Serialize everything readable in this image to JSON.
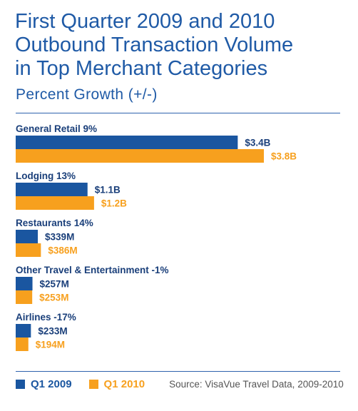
{
  "title_lines": [
    "First Quarter 2009 and 2010",
    "Outbound Transaction Volume",
    "in Top Merchant Categories"
  ],
  "subtitle": "Percent Growth (+/-)",
  "colors": {
    "title": "#1f5aa6",
    "q1_2009": "#1a56a0",
    "q1_2010": "#f7a01e",
    "rule": "#2f62ad"
  },
  "legend": {
    "items": [
      {
        "label": "Q1 2009",
        "color": "#1a56a0"
      },
      {
        "label": "Q1 2010",
        "color": "#f7a01e"
      }
    ],
    "source": "Source: VisaVue Travel Data, 2009-2010"
  },
  "chart_data": {
    "type": "bar",
    "orientation": "horizontal",
    "unit": "USD billions",
    "categories": [
      "General Retail 9%",
      "Lodging  13%",
      "Restaurants  14%",
      "Other Travel & Entertainment  -1%",
      "Airlines  -17%"
    ],
    "series": [
      {
        "name": "Q1 2009",
        "values": [
          3.4,
          1.1,
          0.339,
          0.257,
          0.233
        ],
        "labels": [
          "$3.4B",
          "$1.1B",
          "$339M",
          "$257M",
          "$233M"
        ]
      },
      {
        "name": "Q1 2010",
        "values": [
          3.8,
          1.2,
          0.386,
          0.253,
          0.194
        ],
        "labels": [
          "$3.8B",
          "$1.2B",
          "$386M",
          "$253M",
          "$194M"
        ]
      }
    ],
    "xlim": [
      0,
      3.8
    ],
    "grid": false,
    "legend_position": "bottom-left"
  }
}
